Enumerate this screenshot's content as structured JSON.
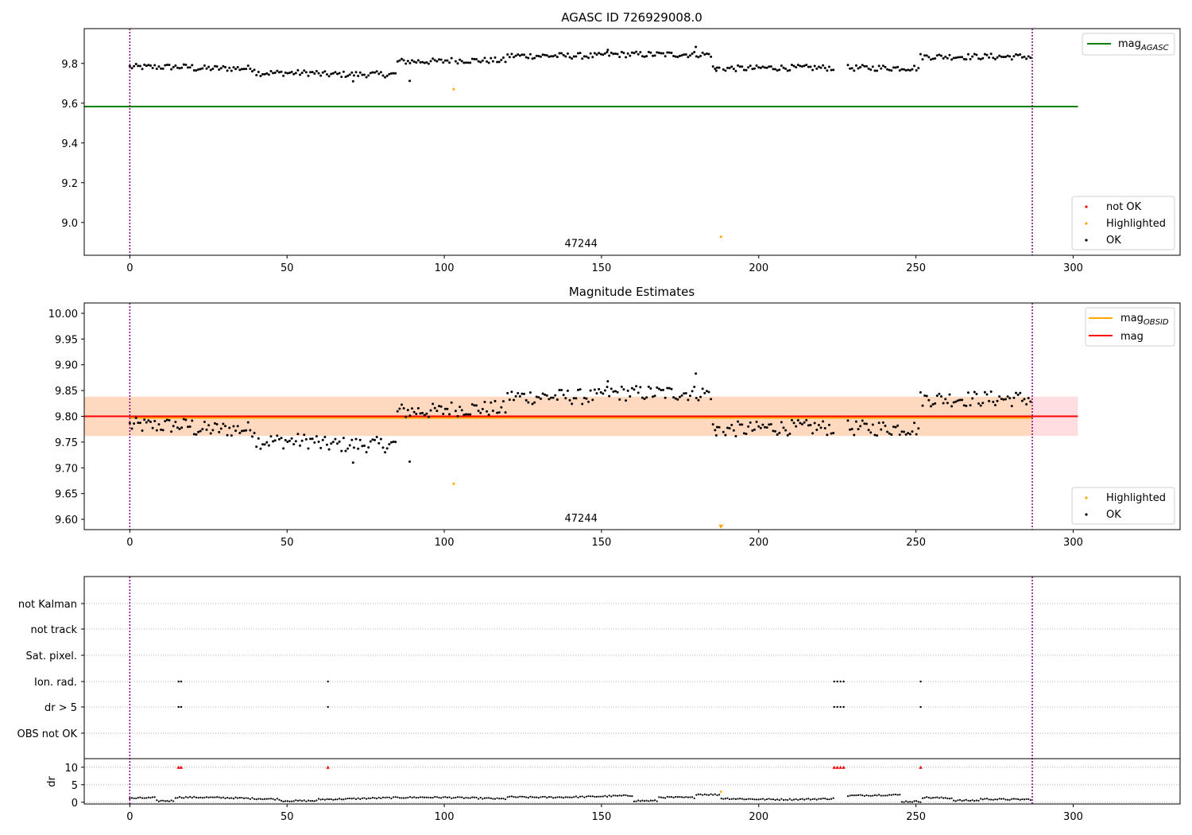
{
  "colors": {
    "ok": "#000000",
    "highlighted": "#ffa500",
    "not_ok": "#ff0000",
    "mag_agasc": "#008000",
    "mag_obsid": "#ffa500",
    "mag": "#ff0000",
    "band_outer": "#ffdde1",
    "band_inner": "#ffd8c0",
    "vline": "#800080"
  },
  "chart_data": [
    {
      "type": "scatter",
      "title": "AGASC ID 726929008.0",
      "xlim": [
        -14.5,
        334
      ],
      "ylim": [
        8.835,
        9.975
      ],
      "xticks": [
        0,
        50,
        100,
        150,
        200,
        250,
        300
      ],
      "yticks": [
        9.0,
        9.2,
        9.4,
        9.6,
        9.8
      ],
      "ytick_labels": [
        "9.0",
        "9.2",
        "9.4",
        "9.6",
        "9.8"
      ],
      "hlines": [
        {
          "name": "mag_agasc",
          "y": 9.583,
          "x0": -14.5,
          "x1": 301.5
        }
      ],
      "vlines": [
        0,
        287
      ],
      "annotations": [
        {
          "text": "47244",
          "x": 143.5,
          "y": 8.89
        }
      ],
      "highlighted_points": [
        [
          103,
          9.67
        ],
        [
          188,
          8.928
        ]
      ],
      "legend_top": {
        "label": "mag",
        "sub": "AGASC"
      },
      "legend_bottom": [
        "not OK",
        "Highlighted",
        "OK"
      ]
    },
    {
      "type": "scatter",
      "title": "Magnitude Estimates",
      "xlim": [
        -14.5,
        334
      ],
      "ylim": [
        9.58,
        10.02
      ],
      "xticks": [
        0,
        50,
        100,
        150,
        200,
        250,
        300
      ],
      "yticks": [
        9.6,
        9.65,
        9.7,
        9.75,
        9.8,
        9.85,
        9.9,
        9.95,
        10.0
      ],
      "ytick_labels": [
        "9.60",
        "9.65",
        "9.70",
        "9.75",
        "9.80",
        "9.85",
        "9.90",
        "9.95",
        "10.00"
      ],
      "band_outer": [
        9.762,
        9.838
      ],
      "band_inner": [
        9.762,
        9.838
      ],
      "band_inner_x": [
        -14.5,
        287
      ],
      "mag": 9.8,
      "mag_obsid": 9.797,
      "vlines": [
        0,
        287
      ],
      "annotations": [
        {
          "text": "47244",
          "x": 143.5,
          "y": 9.6
        }
      ],
      "highlighted_points": [
        [
          103,
          9.669
        ]
      ],
      "highlighted_marker": {
        "x": 188,
        "y": 9.585,
        "shape": "triangle-down"
      },
      "legend_top": [
        {
          "label": "mag",
          "sub": "OBSID"
        },
        {
          "label": "mag"
        }
      ],
      "legend_bottom": [
        "Highlighted",
        "OK"
      ]
    },
    {
      "type": "scatter",
      "title": "",
      "xlim": [
        -14.5,
        334
      ],
      "flags": [
        "not Kalman",
        "not track",
        "Sat. pixel.",
        "Ion. rad.",
        "dr > 5",
        "OBS not OK"
      ],
      "flag_points": {
        "Ion. rad.": [
          15.5,
          16.3,
          63,
          224,
          225,
          226,
          227,
          251.5
        ],
        "dr > 5": [
          15.5,
          16.3,
          63,
          224,
          225,
          226,
          227,
          251.5
        ]
      },
      "vlines": [
        0,
        287
      ],
      "dr_ylabel": "dr",
      "dr_ylim": [
        -0.5,
        12
      ],
      "dr_yticks": [
        0,
        5,
        10
      ],
      "dr_ytick_labels": [
        "0",
        "5",
        "10"
      ],
      "dr_clip": 10,
      "dr_clipped_x": [
        15.5,
        16.3,
        63,
        224,
        225,
        226,
        227,
        251.5
      ],
      "dr_highlighted": [
        [
          188,
          3.0
        ]
      ],
      "xticks": [
        0,
        50,
        100,
        150,
        200,
        250,
        300
      ]
    }
  ]
}
